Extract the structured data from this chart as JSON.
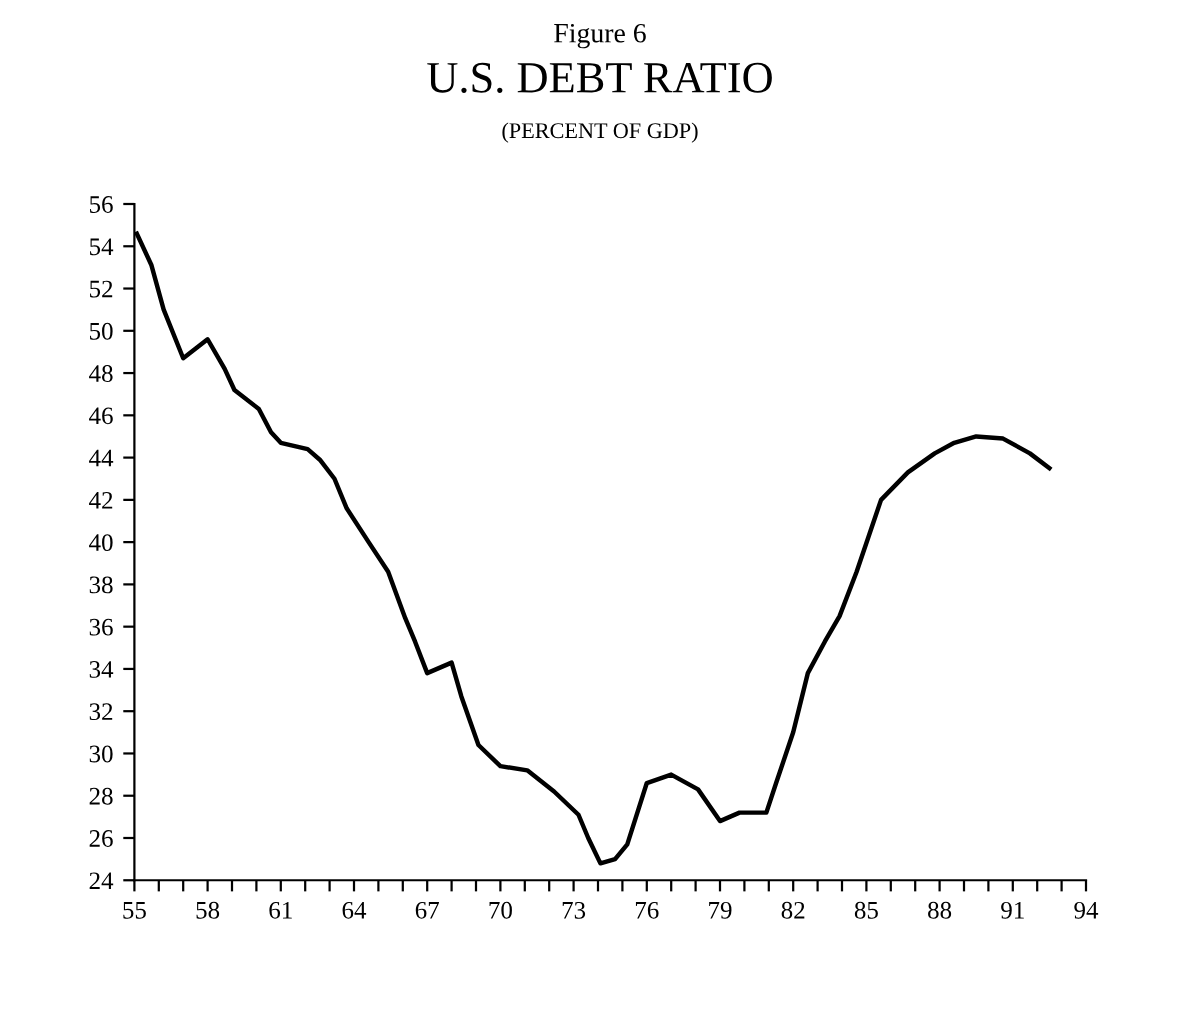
{
  "chart_data": {
    "type": "line",
    "title": "U.S. DEBT RATIO",
    "subtitle": "(PERCENT OF GDP)",
    "annotations": [
      "Figure 6"
    ],
    "x": [
      55.1,
      55.7,
      56.2,
      57.0,
      58.0,
      58.7,
      59.1,
      60.1,
      60.6,
      61.0,
      62.1,
      62.6,
      63.2,
      63.7,
      64.6,
      65.4,
      66.1,
      66.5,
      67.0,
      68.0,
      68.4,
      69.1,
      70.0,
      71.1,
      72.2,
      73.2,
      73.6,
      74.1,
      74.7,
      75.2,
      76.0,
      77.0,
      78.1,
      79.0,
      79.8,
      80.9,
      81.3,
      82.0,
      82.6,
      83.3,
      83.9,
      84.6,
      85.6,
      86.7,
      87.8,
      88.6,
      89.5,
      90.6,
      91.7,
      92.5
    ],
    "series": [
      {
        "color": "#000000",
        "values": [
          54.6,
          53.1,
          51.0,
          48.7,
          49.6,
          48.2,
          47.2,
          46.3,
          45.2,
          44.7,
          44.4,
          43.9,
          43.0,
          41.6,
          40.0,
          38.6,
          36.4,
          35.3,
          33.8,
          34.3,
          32.7,
          30.4,
          29.4,
          29.2,
          28.2,
          27.1,
          26.0,
          24.8,
          25.0,
          25.7,
          28.6,
          29.0,
          28.3,
          26.8,
          27.2,
          27.2,
          28.6,
          31.0,
          33.8,
          35.3,
          36.5,
          38.6,
          42.0,
          43.3,
          44.2,
          44.7,
          45.0,
          44.9,
          44.2,
          43.5
        ]
      }
    ],
    "xlim": [
      55,
      94
    ],
    "ylim": [
      24,
      56
    ],
    "xticks": [
      55,
      {
        "value": 56,
        "label": null
      },
      {
        "value": 57,
        "label": null
      },
      58,
      {
        "value": 59,
        "label": null
      },
      {
        "value": 60,
        "label": null
      },
      61,
      {
        "value": 62,
        "label": null
      },
      {
        "value": 63,
        "label": null
      },
      64,
      {
        "value": 65,
        "label": null
      },
      {
        "value": 66,
        "label": null
      },
      67,
      {
        "value": 68,
        "label": null
      },
      {
        "value": 69,
        "label": null
      },
      70,
      {
        "value": 71,
        "label": null
      },
      {
        "value": 72,
        "label": null
      },
      73,
      {
        "value": 74,
        "label": null
      },
      {
        "value": 75,
        "label": null
      },
      76,
      {
        "value": 77,
        "label": null
      },
      {
        "value": 78,
        "label": null
      },
      79,
      {
        "value": 80,
        "label": null
      },
      {
        "value": 81,
        "label": null
      },
      82,
      {
        "value": 83,
        "label": null
      },
      {
        "value": 84,
        "label": null
      },
      85,
      {
        "value": 86,
        "label": null
      },
      {
        "value": 87,
        "label": null
      },
      88,
      {
        "value": 89,
        "label": null
      },
      {
        "value": 90,
        "label": null
      },
      91,
      {
        "value": 92,
        "label": null
      },
      {
        "value": 93,
        "label": null
      },
      94
    ],
    "yticks": [
      24,
      26,
      28,
      30,
      32,
      34,
      36,
      38,
      40,
      42,
      44,
      46,
      48,
      50,
      52,
      54,
      56
    ],
    "grid": false,
    "marker": "none",
    "line_style": "solid"
  }
}
